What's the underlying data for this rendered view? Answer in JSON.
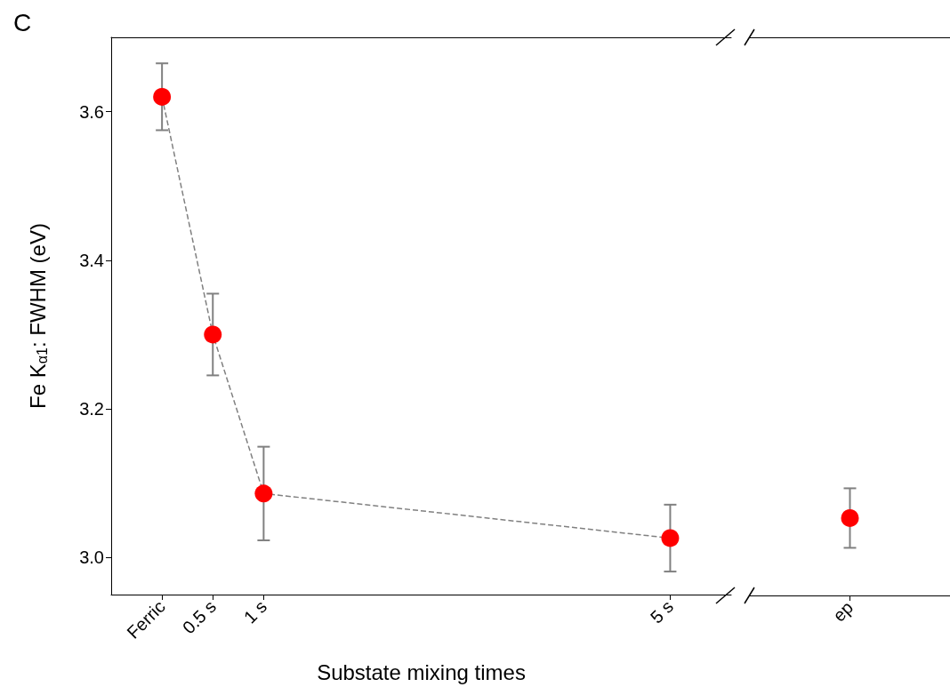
{
  "chart_data": [
    {
      "type": "line",
      "title": "C",
      "xlabel": "Substate mixing times",
      "ylabel": "Fe K$_{α1}$: FWHM (eV)",
      "x": [
        0,
        0.5,
        1,
        5
      ],
      "series": [
        {
          "color": "#ff0000",
          "values": [
            3.62,
            3.3,
            3.086,
            3.026
          ],
          "errors": [
            0.045,
            0.055,
            0.063,
            0.045
          ]
        }
      ],
      "xlim": [
        -0.5,
        5.6
      ],
      "xticks": [
        {
          "value": 0,
          "label": "Ferric"
        },
        {
          "value": 0.5,
          "label": "0.5 s"
        },
        {
          "value": 1,
          "label": "1 s"
        },
        {
          "value": 5,
          "label": "5 s"
        }
      ],
      "ylim": [
        2.95,
        3.7
      ],
      "yticks": [
        {
          "value": 3,
          "label": "3.0"
        },
        3.2,
        3.4,
        3.6
      ],
      "marker": "circle",
      "line_style": "dashed",
      "grid": false
    },
    {
      "type": "scatter",
      "categories": [
        "ep"
      ],
      "series": [
        {
          "color": "#ff0000",
          "values": [
            3.054
          ],
          "errors": [
            0.04
          ]
        }
      ],
      "ylim": [
        2.95,
        3.7
      ],
      "tick_labels": "x",
      "marker": "circle",
      "grid": false
    }
  ]
}
